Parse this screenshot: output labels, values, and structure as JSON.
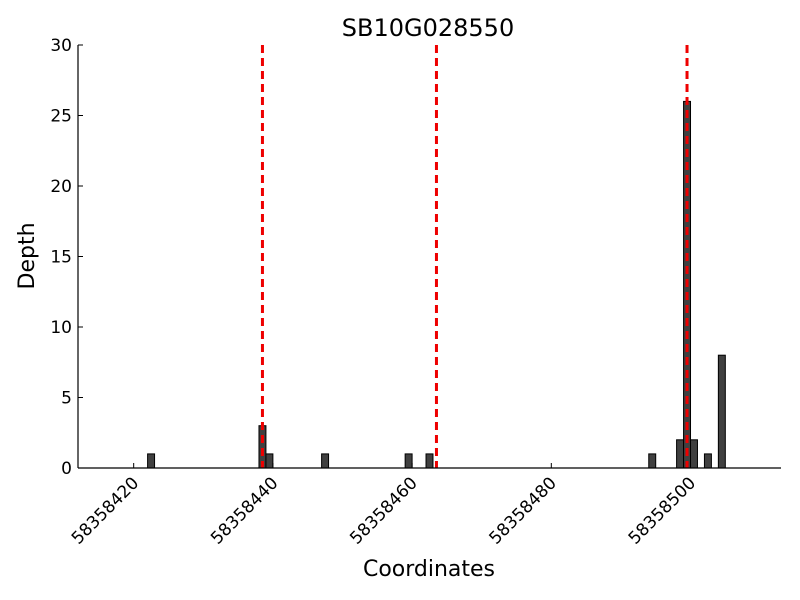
{
  "chart_data": {
    "type": "bar",
    "title": "SB10G028550",
    "xlabel": "Coordinates",
    "ylabel": "Depth",
    "xlim": [
      58358412,
      58358513
    ],
    "ylim": [
      0,
      30
    ],
    "xticks": [
      58358420,
      58358440,
      58358460,
      58358480,
      58358500
    ],
    "yticks": [
      0,
      5,
      10,
      15,
      20,
      25,
      30
    ],
    "bar_color": "#404040",
    "bars": [
      {
        "x": 58358422,
        "y": 1
      },
      {
        "x": 58358438,
        "y": 3
      },
      {
        "x": 58358439,
        "y": 1
      },
      {
        "x": 58358447,
        "y": 1
      },
      {
        "x": 58358459,
        "y": 1
      },
      {
        "x": 58358462,
        "y": 1
      },
      {
        "x": 58358494,
        "y": 1
      },
      {
        "x": 58358498,
        "y": 2
      },
      {
        "x": 58358499,
        "y": 26
      },
      {
        "x": 58358500,
        "y": 2
      },
      {
        "x": 58358502,
        "y": 1
      },
      {
        "x": 58358504,
        "y": 8
      }
    ],
    "vlines": {
      "color": "#ee0000",
      "style": "dashed",
      "x": [
        58358438.5,
        58358463.5,
        58358499.5
      ]
    }
  }
}
